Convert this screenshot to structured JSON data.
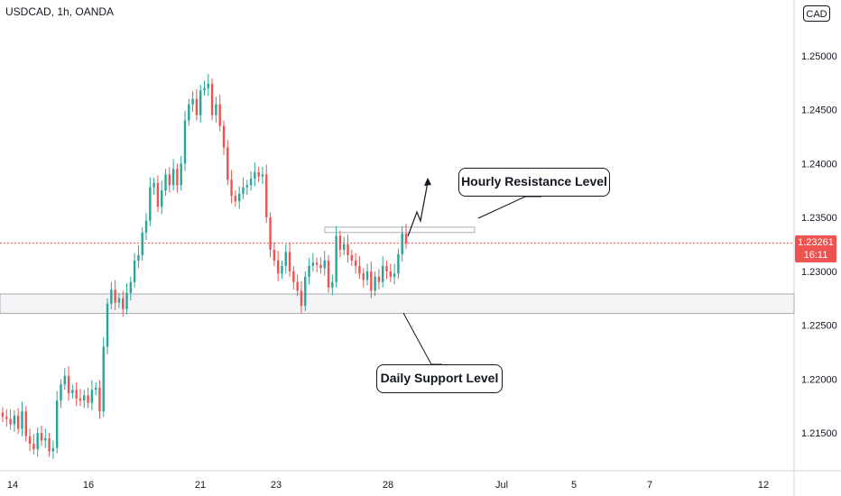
{
  "header": {
    "symbol": "USDCAD, 1h, OANDA",
    "currency": "CAD"
  },
  "price_tag": {
    "price": "1.23261",
    "countdown": "16:11",
    "color": "#ef5350"
  },
  "annotations": {
    "resistance_label": "Hourly Resistance Level",
    "support_label": "Daily Support Level"
  },
  "colors": {
    "up": "#26a69a",
    "down": "#ef5350",
    "text": "#131722"
  },
  "chart_data": {
    "type": "candlestick",
    "title": "USDCAD, 1h, OANDA",
    "y_ticks": [
      "1.25000",
      "1.24500",
      "1.24000",
      "1.23500",
      "1.23000",
      "1.22500",
      "1.22000",
      "1.21500"
    ],
    "x_ticks": [
      "14",
      "16",
      "21",
      "23",
      "28",
      "Jul",
      "5",
      "7",
      "12"
    ],
    "ylim": [
      1.2125,
      1.2525
    ],
    "last_price": 1.23261,
    "support_zone": [
      1.2261,
      1.2279
    ],
    "resistance_zone": [
      1.2336,
      1.2341
    ],
    "series_close": [
      1.2165,
      1.2163,
      1.2158,
      1.2166,
      1.2154,
      1.217,
      1.2147,
      1.214,
      1.2135,
      1.215,
      1.2143,
      1.2145,
      1.2133,
      1.2136,
      1.218,
      1.2195,
      1.2203,
      1.2187,
      1.219,
      1.2182,
      1.218,
      1.2185,
      1.2178,
      1.219,
      1.2192,
      1.217,
      1.223,
      1.227,
      1.2283,
      1.2271,
      1.2275,
      1.2265,
      1.228,
      1.229,
      1.231,
      1.2315,
      1.2336,
      1.2347,
      1.2378,
      1.2382,
      1.236,
      1.2375,
      1.239,
      1.238,
      1.2395,
      1.238,
      1.24,
      1.244,
      1.2455,
      1.246,
      1.2445,
      1.2468,
      1.247,
      1.2474,
      1.2445,
      1.2455,
      1.2435,
      1.2415,
      1.2385,
      1.237,
      1.2365,
      1.2372,
      1.2378,
      1.238,
      1.2386,
      1.2392,
      1.2388,
      1.239,
      1.235,
      1.232,
      1.231,
      1.2298,
      1.2305,
      1.2318,
      1.23,
      1.229,
      1.2282,
      1.2268,
      1.2295,
      1.2305,
      1.2308,
      1.2306,
      1.2303,
      1.231,
      1.2285,
      1.229,
      1.2333,
      1.232,
      1.2325,
      1.2315,
      1.231,
      1.2305,
      1.2298,
      1.2292,
      1.23,
      1.2282,
      1.2295,
      1.229,
      1.2305,
      1.23,
      1.2295,
      1.2298,
      1.2316,
      1.2335,
      1.2326
    ]
  }
}
